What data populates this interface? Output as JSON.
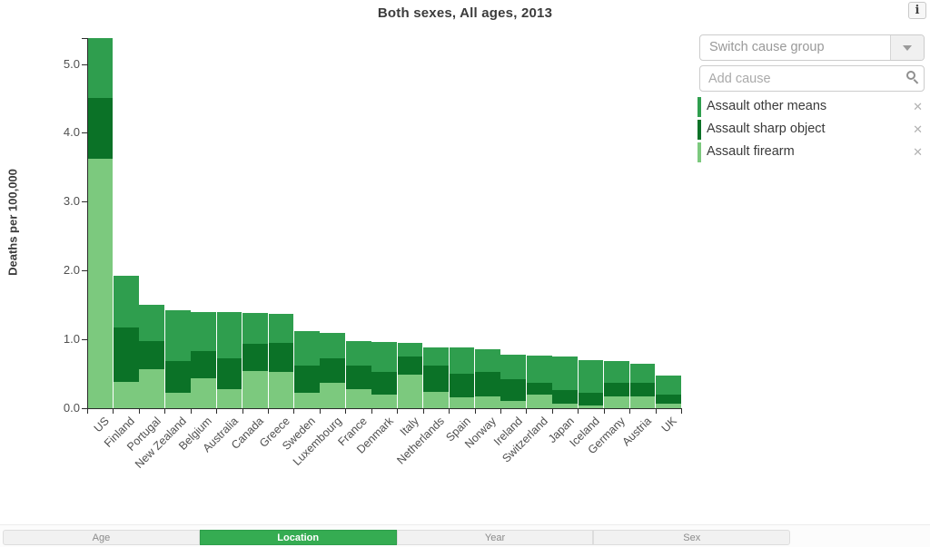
{
  "title": "Both sexes, All ages, 2013",
  "info_button_label": "i",
  "controls": {
    "switch_cause_group_placeholder": "Switch cause group",
    "add_cause_placeholder": "Add cause",
    "remove_symbol": "✕"
  },
  "legend": [
    {
      "label": "Assault other means",
      "color": "#2f9e4e"
    },
    {
      "label": "Assault sharp object",
      "color": "#0b7227"
    },
    {
      "label": "Assault firearm",
      "color": "#7cc97e"
    }
  ],
  "footer_tabs": [
    {
      "label": "Age",
      "active": false
    },
    {
      "label": "Location",
      "active": true
    },
    {
      "label": "Year",
      "active": false
    },
    {
      "label": "Sex",
      "active": false
    }
  ],
  "colors": {
    "accent_green": "#35ac52",
    "axis": "#2b2b2b",
    "firearm": "#7cc97e",
    "sharp_object": "#0b7227",
    "other_means": "#2f9e4e"
  },
  "chart_data": {
    "type": "bar",
    "stacked": true,
    "title": "Both sexes, All ages, 2013",
    "xlabel": "",
    "ylabel": "Deaths per 100,000",
    "ylim": [
      0,
      5.4
    ],
    "grid": false,
    "legend_position": "right",
    "yticks": [
      {
        "label": "0.0",
        "value": 0
      },
      {
        "label": "1.0",
        "value": 1
      },
      {
        "label": "2.0",
        "value": 2
      },
      {
        "label": "3.0",
        "value": 3
      },
      {
        "label": "4.0",
        "value": 4
      },
      {
        "label": "5.0",
        "value": 5
      }
    ],
    "categories": [
      "US",
      "Finland",
      "Portugal",
      "New Zealand",
      "Belgium",
      "Australia",
      "Canada",
      "Greece",
      "Sweden",
      "Luxembourg",
      "France",
      "Denmark",
      "Italy",
      "Netherlands",
      "Spain",
      "Norway",
      "Ireland",
      "Switzerland",
      "Japan",
      "Iceland",
      "Germany",
      "Austria",
      "UK"
    ],
    "series": [
      {
        "name": "Assault firearm",
        "color": "#7cc97e",
        "values": [
          3.62,
          0.38,
          0.57,
          0.22,
          0.43,
          0.28,
          0.54,
          0.53,
          0.22,
          0.37,
          0.28,
          0.2,
          0.49,
          0.24,
          0.16,
          0.17,
          0.11,
          0.2,
          0.07,
          0.04,
          0.17,
          0.17,
          0.07
        ]
      },
      {
        "name": "Assault sharp object",
        "color": "#0b7227",
        "values": [
          0.88,
          0.79,
          0.4,
          0.46,
          0.4,
          0.45,
          0.39,
          0.42,
          0.4,
          0.36,
          0.34,
          0.33,
          0.26,
          0.38,
          0.34,
          0.36,
          0.31,
          0.17,
          0.19,
          0.18,
          0.2,
          0.2,
          0.13
        ]
      },
      {
        "name": "Assault other means",
        "color": "#2f9e4e",
        "values": [
          0.87,
          0.75,
          0.53,
          0.74,
          0.57,
          0.66,
          0.45,
          0.42,
          0.5,
          0.36,
          0.36,
          0.43,
          0.2,
          0.26,
          0.38,
          0.32,
          0.36,
          0.39,
          0.49,
          0.48,
          0.31,
          0.28,
          0.28
        ]
      }
    ],
    "totals": [
      5.37,
      1.92,
      1.5,
      1.42,
      1.4,
      1.39,
      1.38,
      1.37,
      1.12,
      1.09,
      0.98,
      0.96,
      0.95,
      0.88,
      0.88,
      0.85,
      0.78,
      0.76,
      0.75,
      0.7,
      0.68,
      0.65,
      0.48
    ]
  }
}
